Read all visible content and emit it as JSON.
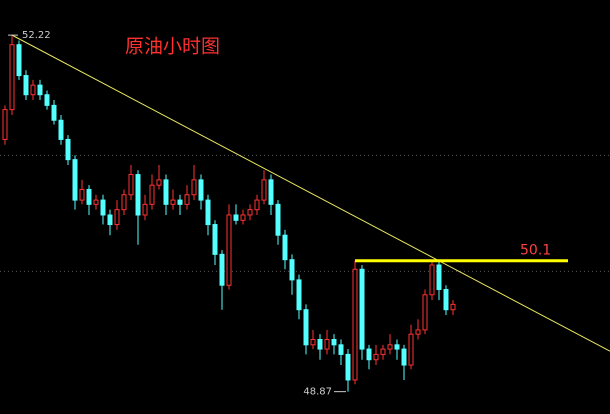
{
  "chart_data": {
    "type": "candlestick",
    "title": "原油小时图",
    "open": [
      51.24,
      51.52,
      52.13,
      51.84,
      51.66,
      51.75,
      51.66,
      51.56,
      51.42,
      51.24,
      51.05,
      50.67,
      50.77,
      50.63,
      50.67,
      50.53,
      50.44,
      50.58,
      50.72,
      50.91,
      50.53,
      50.63,
      50.81,
      50.86,
      50.63,
      50.67,
      50.63,
      50.72,
      50.86,
      50.67,
      50.44,
      50.16,
      49.87,
      50.53,
      50.48,
      50.53,
      50.58,
      50.67,
      50.86,
      50.63,
      50.34,
      50.11,
      49.92,
      49.64,
      49.31,
      49.36,
      49.27,
      49.36,
      49.31,
      49.22,
      48.98,
      50.02,
      49.27,
      49.17,
      49.22,
      49.27,
      49.31,
      49.27,
      49.12,
      49.41,
      49.45,
      49.78,
      50.06,
      49.83,
      49.64
    ],
    "high": [
      51.56,
      52.22,
      52.17,
      51.89,
      51.8,
      51.8,
      51.7,
      51.61,
      51.47,
      51.28,
      51.09,
      50.86,
      50.81,
      50.72,
      50.72,
      50.58,
      50.67,
      50.77,
      51.0,
      50.95,
      50.72,
      50.91,
      51.0,
      50.91,
      50.77,
      50.72,
      50.81,
      51.0,
      50.91,
      50.72,
      50.48,
      50.2,
      50.63,
      50.63,
      50.58,
      50.63,
      50.72,
      50.95,
      50.91,
      50.67,
      50.39,
      50.16,
      49.97,
      49.69,
      49.45,
      49.41,
      49.45,
      49.41,
      49.36,
      49.27,
      50.1,
      50.06,
      49.31,
      49.31,
      49.31,
      49.41,
      49.36,
      49.31,
      49.5,
      49.55,
      49.83,
      50.1,
      50.11,
      49.87,
      49.73
    ],
    "low": [
      51.19,
      51.47,
      51.8,
      51.61,
      51.61,
      51.61,
      51.52,
      51.38,
      51.19,
      51.0,
      50.58,
      50.63,
      50.53,
      50.58,
      50.44,
      50.34,
      50.39,
      50.53,
      50.67,
      50.25,
      50.48,
      50.58,
      50.77,
      50.53,
      50.58,
      50.53,
      50.58,
      50.67,
      50.58,
      50.34,
      50.06,
      49.64,
      49.83,
      50.44,
      50.44,
      50.48,
      50.53,
      50.63,
      50.53,
      50.25,
      50.02,
      49.78,
      49.55,
      49.22,
      49.27,
      49.17,
      49.22,
      49.22,
      49.12,
      48.87,
      48.94,
      49.17,
      49.08,
      49.12,
      49.17,
      49.22,
      49.17,
      48.98,
      49.08,
      49.36,
      49.41,
      49.73,
      49.73,
      49.59,
      49.59
    ],
    "close": [
      51.52,
      52.13,
      51.84,
      51.66,
      51.75,
      51.66,
      51.56,
      51.42,
      51.24,
      51.05,
      50.67,
      50.77,
      50.63,
      50.67,
      50.53,
      50.44,
      50.58,
      50.72,
      50.91,
      50.53,
      50.63,
      50.81,
      50.86,
      50.63,
      50.67,
      50.63,
      50.72,
      50.86,
      50.67,
      50.44,
      50.16,
      49.87,
      50.53,
      50.48,
      50.53,
      50.58,
      50.67,
      50.86,
      50.63,
      50.34,
      50.11,
      49.92,
      49.64,
      49.31,
      49.36,
      49.27,
      49.36,
      49.31,
      49.22,
      48.98,
      50.02,
      49.27,
      49.17,
      49.22,
      49.27,
      49.31,
      49.27,
      49.12,
      49.41,
      49.45,
      49.78,
      50.06,
      49.83,
      49.64,
      49.69
    ],
    "up_color": "#ff3232",
    "down_color": "#54ffff",
    "ylim": [
      48.66,
      52.55
    ],
    "grid_levels": [
      51.09,
      50.0
    ],
    "trendline": {
      "start": 52.22,
      "end": 49.25,
      "color": "#e8e860"
    },
    "resistance": {
      "value": 50.1,
      "color": "#ffff00",
      "label_color": "#ff4040"
    }
  }
}
